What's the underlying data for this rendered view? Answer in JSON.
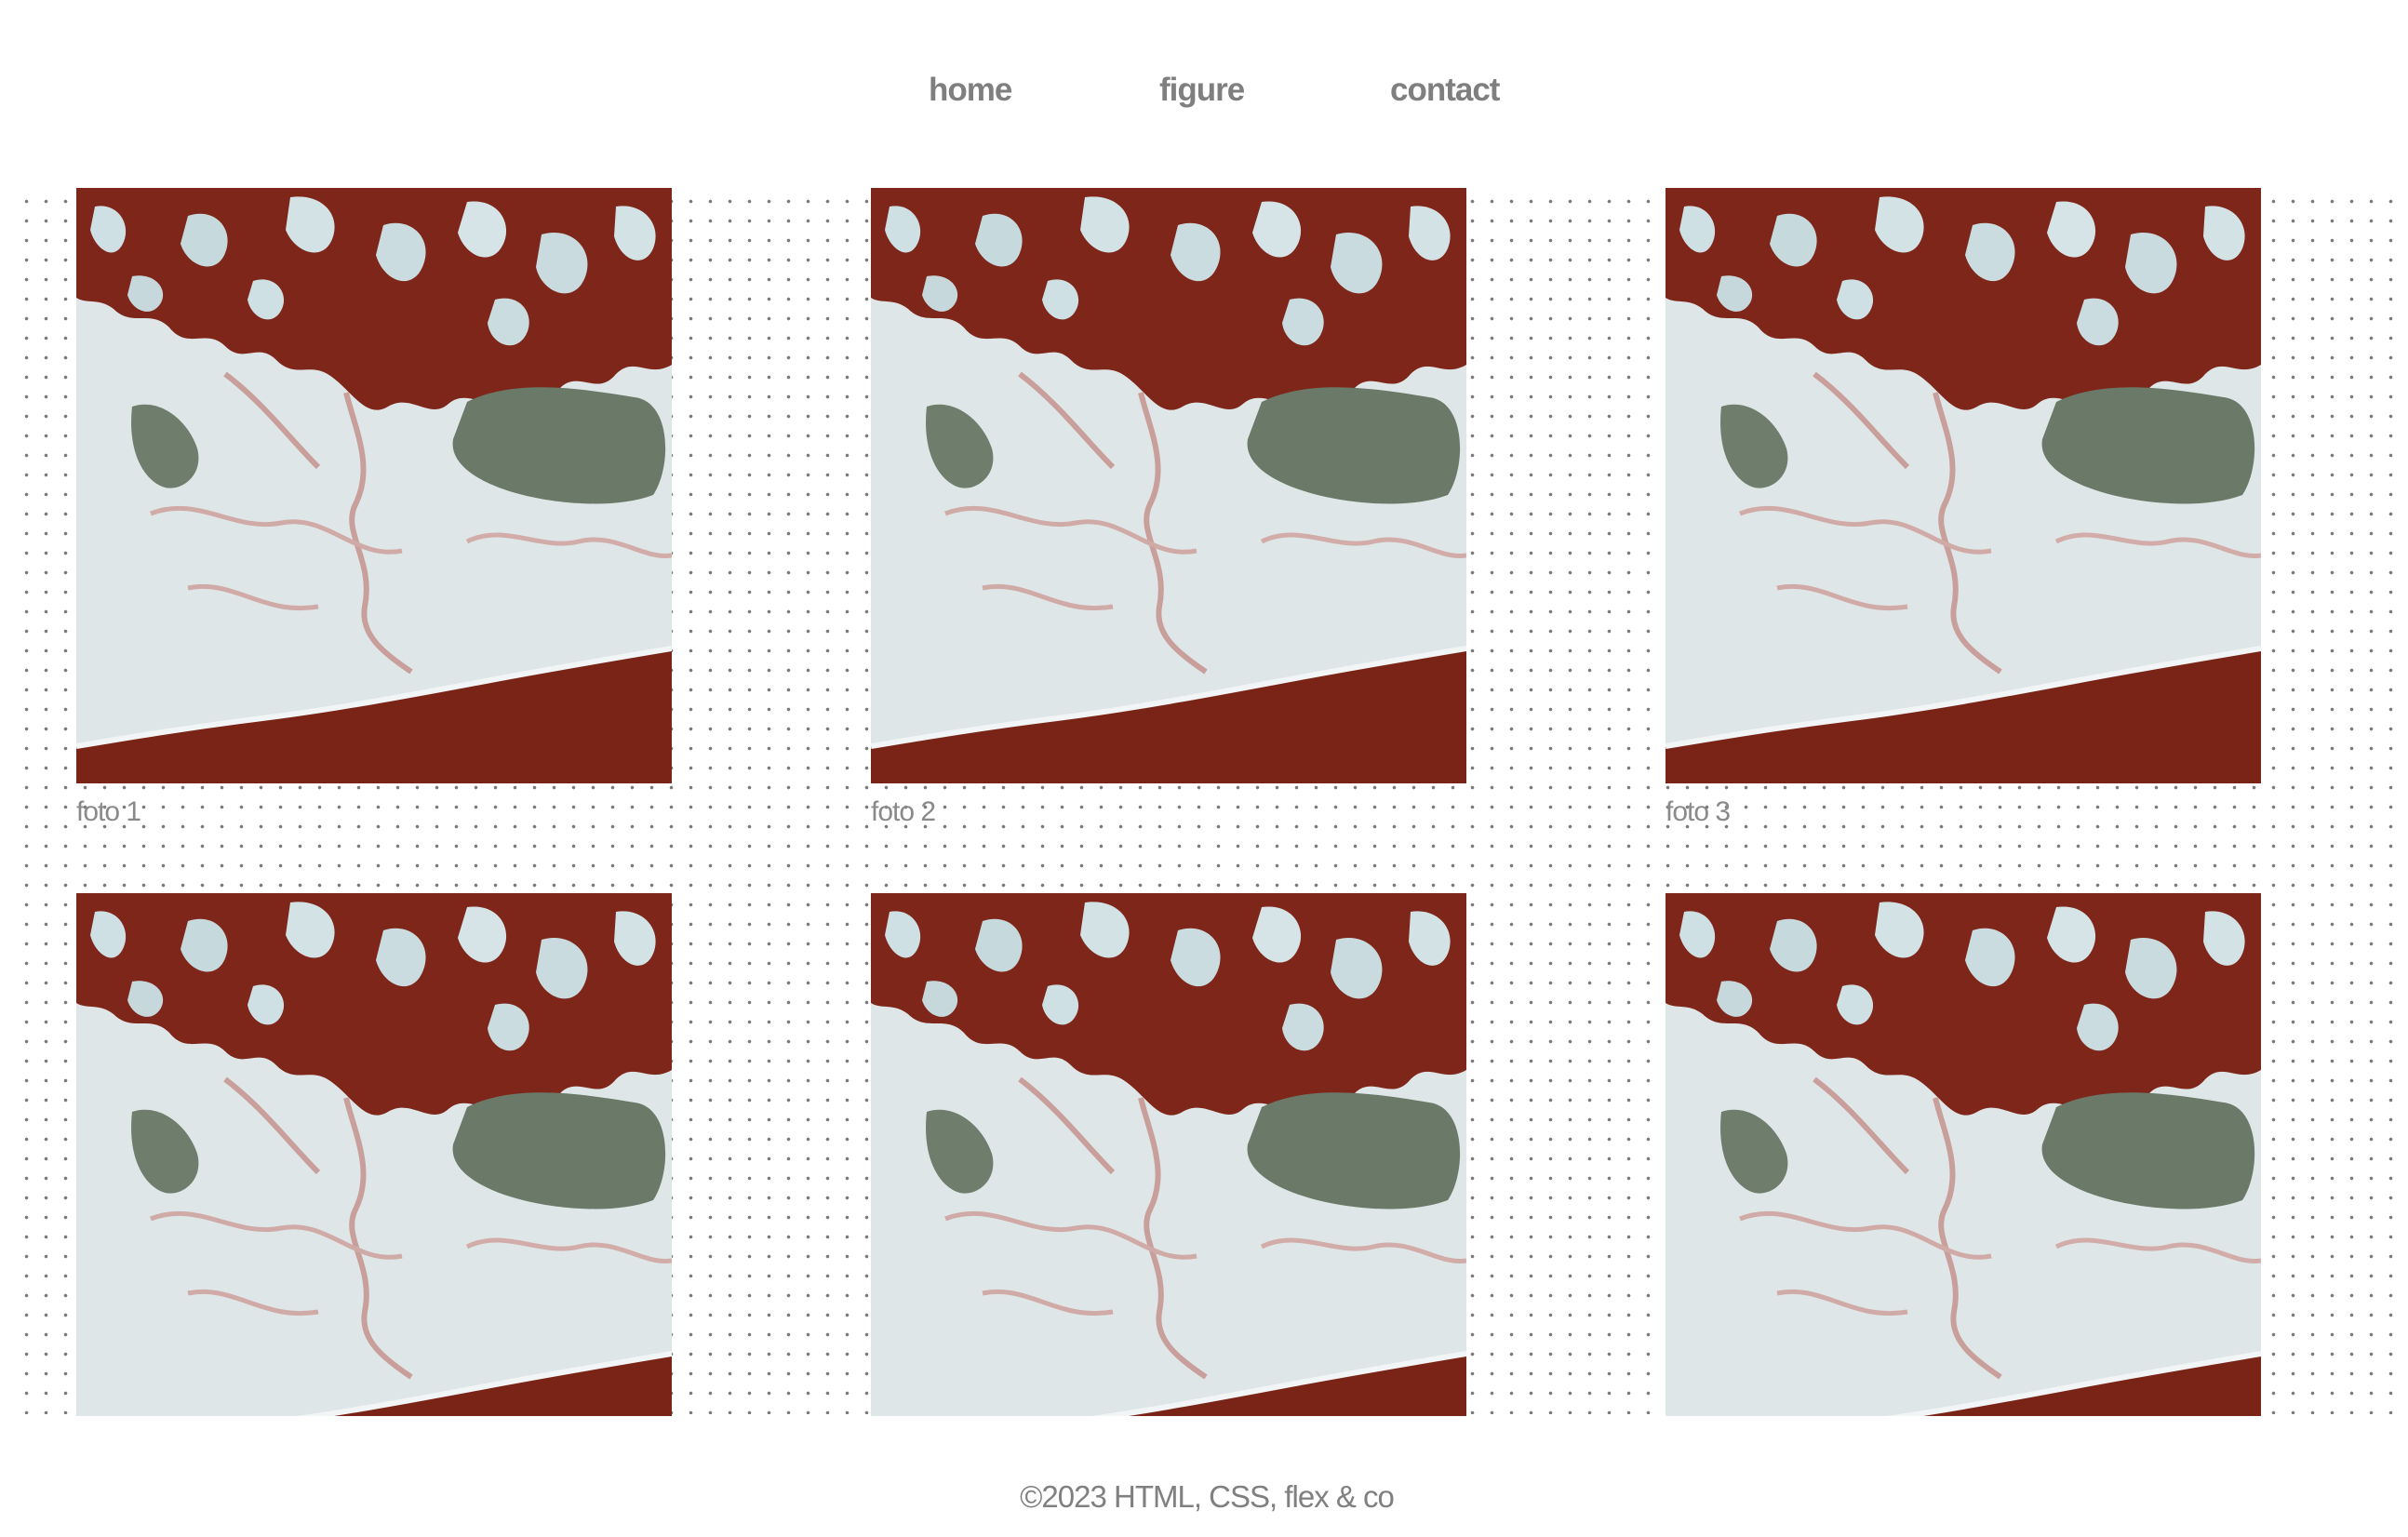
{
  "nav": {
    "items": [
      {
        "label": "home"
      },
      {
        "label": "figure"
      },
      {
        "label": "contact"
      }
    ]
  },
  "gallery": {
    "figures": [
      {
        "caption": "foto 1"
      },
      {
        "caption": "foto 2"
      },
      {
        "caption": "foto 3"
      },
      {
        "caption": ""
      },
      {
        "caption": ""
      },
      {
        "caption": ""
      }
    ]
  },
  "footer": {
    "text": "©2023 HTML, CSS, flex & co"
  },
  "colors": {
    "nav_text": "#7f7f7f",
    "caption_text": "#8a8a8a",
    "salt_white": "#e6ecee",
    "brine_red": "#8a2a1c",
    "lichen_green": "#6b7a68"
  }
}
